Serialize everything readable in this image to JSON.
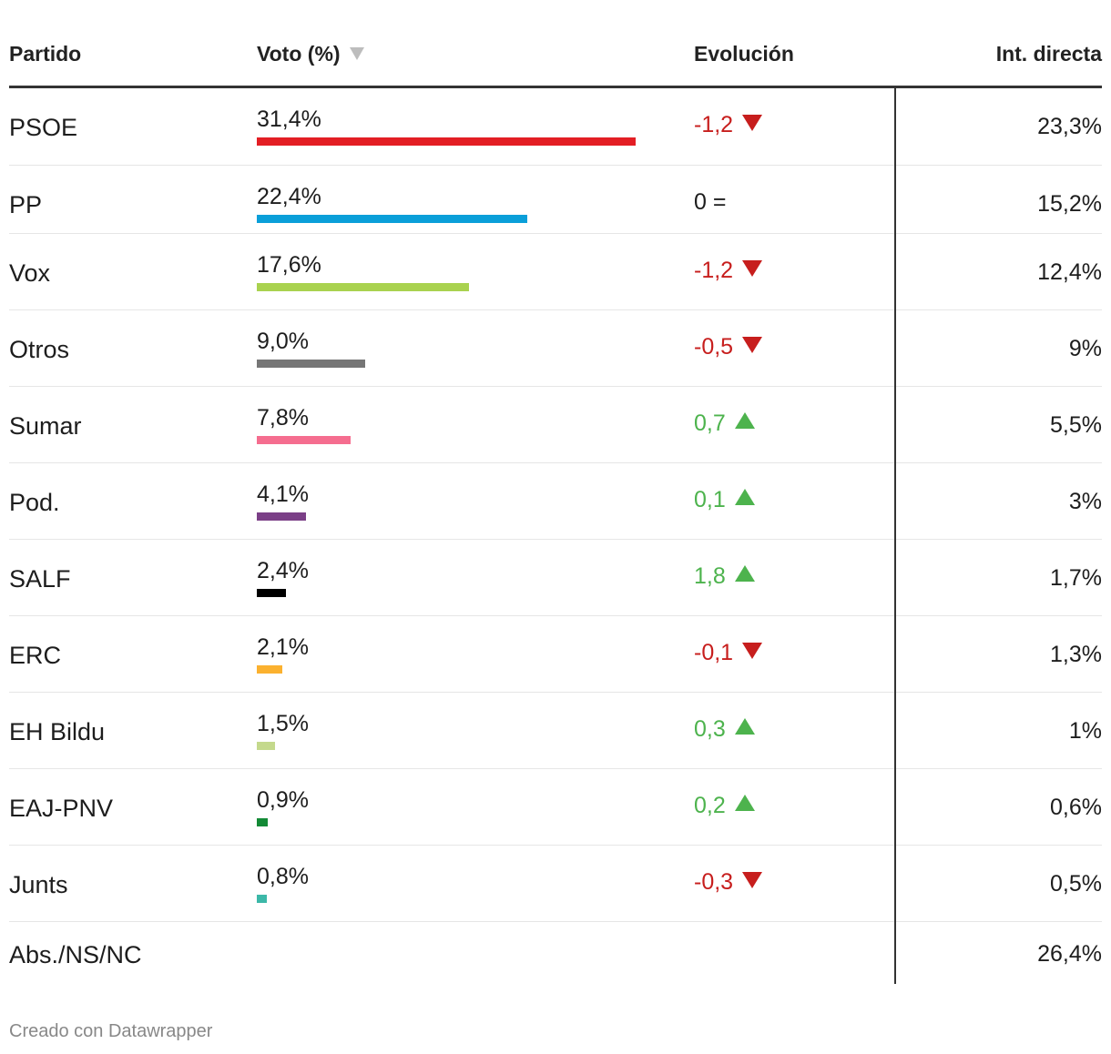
{
  "header": {
    "partido": "Partido",
    "voto": "Voto (%)",
    "evolucion": "Evolución",
    "int_directa": "Int. directa"
  },
  "chart_data": {
    "type": "table",
    "title": "",
    "columns": [
      "Partido",
      "Voto (%)",
      "Evolución",
      "Int. directa"
    ],
    "sorted_by": "Voto (%)",
    "bar_max": 31.4,
    "rows": [
      {
        "partido": "PSOE",
        "voto": 31.4,
        "voto_label": "31,4%",
        "color": "#e31e24",
        "evol": "-1,2",
        "evol_dir": "down",
        "int": "23,3%"
      },
      {
        "partido": "PP",
        "voto": 22.4,
        "voto_label": "22,4%",
        "color": "#0a9fd9",
        "evol": "0 =",
        "evol_dir": "same",
        "int": "15,2%"
      },
      {
        "partido": "Vox",
        "voto": 17.6,
        "voto_label": "17,6%",
        "color": "#a9d24f",
        "evol": "-1,2",
        "evol_dir": "down",
        "int": "12,4%"
      },
      {
        "partido": "Otros",
        "voto": 9.0,
        "voto_label": "9,0%",
        "color": "#767676",
        "evol": "-0,5",
        "evol_dir": "down",
        "int": "9%"
      },
      {
        "partido": "Sumar",
        "voto": 7.8,
        "voto_label": "7,8%",
        "color": "#f56d8f",
        "evol": "0,7",
        "evol_dir": "up",
        "int": "5,5%"
      },
      {
        "partido": "Pod.",
        "voto": 4.1,
        "voto_label": "4,1%",
        "color": "#7b3f87",
        "evol": "0,1",
        "evol_dir": "up",
        "int": "3%"
      },
      {
        "partido": "SALF",
        "voto": 2.4,
        "voto_label": "2,4%",
        "color": "#000000",
        "evol": "1,8",
        "evol_dir": "up",
        "int": "1,7%"
      },
      {
        "partido": "ERC",
        "voto": 2.1,
        "voto_label": "2,1%",
        "color": "#fbb12f",
        "evol": "-0,1",
        "evol_dir": "down",
        "int": "1,3%"
      },
      {
        "partido": "EH Bildu",
        "voto": 1.5,
        "voto_label": "1,5%",
        "color": "#c4d98c",
        "evol": "0,3",
        "evol_dir": "up",
        "int": "1%"
      },
      {
        "partido": "EAJ-PNV",
        "voto": 0.9,
        "voto_label": "0,9%",
        "color": "#138a36",
        "evol": "0,2",
        "evol_dir": "up",
        "int": "0,6%"
      },
      {
        "partido": "Junts",
        "voto": 0.8,
        "voto_label": "0,8%",
        "color": "#3cb8a8",
        "evol": "-0,3",
        "evol_dir": "down",
        "int": "0,5%"
      },
      {
        "partido": "Abs./NS/NC",
        "voto": null,
        "voto_label": "",
        "color": "",
        "evol": "",
        "evol_dir": "",
        "int": "26,4%"
      }
    ]
  },
  "colors": {
    "down": "#c71e1d",
    "up": "#4db34d",
    "same": "#1d1d1d"
  },
  "footer": "Creado con Datawrapper"
}
